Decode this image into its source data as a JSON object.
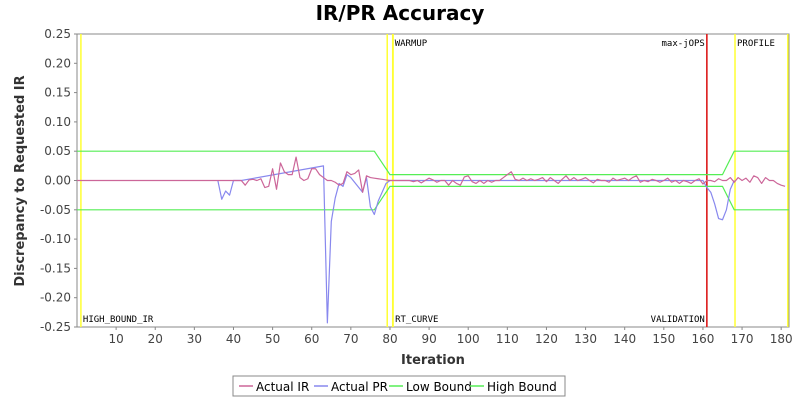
{
  "chart_data": {
    "type": "line",
    "title": "IR/PR Accuracy",
    "xlabel": "Iteration",
    "ylabel": "Discrepancy to Requested IR",
    "xlim": [
      0,
      182
    ],
    "ylim": [
      -0.25,
      0.25
    ],
    "xticks": [
      10,
      20,
      30,
      40,
      50,
      60,
      70,
      80,
      90,
      100,
      110,
      120,
      130,
      140,
      150,
      160,
      170,
      180
    ],
    "yticks": [
      -0.25,
      -0.2,
      -0.15,
      -0.1,
      -0.05,
      0.0,
      0.05,
      0.1,
      0.15,
      0.2,
      0.25
    ],
    "ytick_labels": [
      "-0.25",
      "-0.20",
      "-0.15",
      "-0.10",
      "-0.05",
      "0.00",
      "0.05",
      "0.10",
      "0.15",
      "0.20",
      "0.25"
    ],
    "grid": false,
    "legend_position": "bottom",
    "colors": {
      "actual_ir": "#cc6699",
      "actual_pr": "#8888ee",
      "low_bound": "#55ee55",
      "high_bound": "#55ee55",
      "yellow_marker": "#ffff33",
      "red_marker": "#dd2222",
      "plot_border": "#888888"
    },
    "vertical_markers": [
      {
        "x": 1,
        "color": "#ffff33",
        "label": "HIGH_BOUND_IR",
        "label_pos": "bottom"
      },
      {
        "x": 79.3,
        "color": "#ffff33",
        "label": "",
        "label_pos": "top"
      },
      {
        "x": 80.7,
        "color": "#ffff33",
        "label": "WARMUP",
        "label_pos": "top"
      },
      {
        "x": 80.8,
        "color": "#ffff33",
        "label": "RT_CURVE",
        "label_pos": "bottom"
      },
      {
        "x": 161,
        "color": "#dd2222",
        "label": "max-jOPS",
        "label_pos": "top-left"
      },
      {
        "x": 161,
        "color": "#dd2222",
        "label": "VALIDATION",
        "label_pos": "bottom-left"
      },
      {
        "x": 168.2,
        "color": "#ffff33",
        "label": "PROFILE",
        "label_pos": "top"
      },
      {
        "x": 181.7,
        "color": "#ffff33",
        "label": "",
        "label_pos": "top"
      }
    ],
    "series": [
      {
        "name": "Actual IR",
        "points": [
          [
            0,
            0
          ],
          [
            36,
            0
          ],
          [
            37,
            0
          ],
          [
            38,
            0
          ],
          [
            39,
            0
          ],
          [
            40,
            0
          ],
          [
            41,
            0
          ],
          [
            42,
            0
          ],
          [
            43,
            -0.008
          ],
          [
            44,
            0.001
          ],
          [
            45,
            0.002
          ],
          [
            46,
            0
          ],
          [
            47,
            0.003
          ],
          [
            48,
            -0.012
          ],
          [
            49,
            -0.01
          ],
          [
            50,
            0.02
          ],
          [
            51,
            -0.015
          ],
          [
            52,
            0.03
          ],
          [
            53,
            0.015
          ],
          [
            54,
            0.01
          ],
          [
            55,
            0.01
          ],
          [
            56,
            0.04
          ],
          [
            57,
            0.005
          ],
          [
            58,
            0
          ],
          [
            59,
            0.003
          ],
          [
            60,
            0.02
          ],
          [
            61,
            0.02
          ],
          [
            62,
            0.01
          ],
          [
            63,
            0.005
          ],
          [
            64,
            0
          ],
          [
            65,
            0
          ],
          [
            66,
            -0.003
          ],
          [
            67,
            -0.008
          ],
          [
            68,
            -0.005
          ],
          [
            69,
            0.015
          ],
          [
            70,
            0.01
          ],
          [
            71,
            0.012
          ],
          [
            72,
            0.018
          ],
          [
            73,
            -0.02
          ],
          [
            74,
            0.008
          ],
          [
            75,
            0.005
          ],
          [
            76,
            0.004
          ],
          [
            77,
            0.003
          ],
          [
            78,
            0.002
          ],
          [
            79,
            0.001
          ],
          [
            80,
            0
          ],
          [
            82,
            0
          ],
          [
            84,
            0
          ],
          [
            85,
            0
          ],
          [
            86,
            -0.002
          ],
          [
            87,
            0
          ],
          [
            88,
            -0.004
          ],
          [
            89,
            0
          ],
          [
            90,
            0.004
          ],
          [
            91,
            0.001
          ],
          [
            92,
            -0.003
          ],
          [
            93,
            0
          ],
          [
            94,
            0
          ],
          [
            95,
            -0.008
          ],
          [
            96,
            0
          ],
          [
            97,
            -0.005
          ],
          [
            98,
            -0.008
          ],
          [
            99,
            0.006
          ],
          [
            100,
            0.008
          ],
          [
            101,
            -0.002
          ],
          [
            102,
            -0.005
          ],
          [
            103,
            0
          ],
          [
            104,
            -0.005
          ],
          [
            105,
            0
          ],
          [
            106,
            -0.003
          ],
          [
            107,
            0
          ],
          [
            108,
            0
          ],
          [
            109,
            0.005
          ],
          [
            110,
            0.01
          ],
          [
            111,
            0.015
          ],
          [
            112,
            0.002
          ],
          [
            113,
            0
          ],
          [
            114,
            0.004
          ],
          [
            115,
            0
          ],
          [
            116,
            0.003
          ],
          [
            117,
            0
          ],
          [
            118,
            0.002
          ],
          [
            119,
            0.005
          ],
          [
            120,
            -0.002
          ],
          [
            121,
            0.005
          ],
          [
            122,
            0
          ],
          [
            123,
            -0.005
          ],
          [
            124,
            0.002
          ],
          [
            125,
            0.008
          ],
          [
            126,
            0
          ],
          [
            127,
            0.005
          ],
          [
            128,
            0
          ],
          [
            129,
            0.002
          ],
          [
            130,
            0.005
          ],
          [
            131,
            0
          ],
          [
            132,
            -0.004
          ],
          [
            133,
            0.002
          ],
          [
            134,
            0
          ],
          [
            135,
            0
          ],
          [
            136,
            -0.003
          ],
          [
            137,
            0.004
          ],
          [
            138,
            0
          ],
          [
            139,
            0.002
          ],
          [
            140,
            0.004
          ],
          [
            141,
            0
          ],
          [
            142,
            0.005
          ],
          [
            143,
            0.008
          ],
          [
            144,
            -0.003
          ],
          [
            145,
            0
          ],
          [
            146,
            -0.002
          ],
          [
            147,
            0.002
          ],
          [
            148,
            0
          ],
          [
            149,
            -0.003
          ],
          [
            150,
            0
          ],
          [
            151,
            0.004
          ],
          [
            152,
            -0.003
          ],
          [
            153,
            0
          ],
          [
            154,
            -0.005
          ],
          [
            155,
            0
          ],
          [
            156,
            -0.002
          ],
          [
            157,
            -0.005
          ],
          [
            158,
            0
          ],
          [
            159,
            0.003
          ],
          [
            160,
            -0.006
          ],
          [
            161,
            0
          ],
          [
            162,
            0
          ],
          [
            163,
            -0.002
          ],
          [
            164,
            0.003
          ],
          [
            165,
            0
          ],
          [
            166,
            0
          ],
          [
            167,
            0.005
          ],
          [
            168,
            -0.003
          ],
          [
            169,
            0.005
          ],
          [
            170,
            0
          ],
          [
            171,
            0.004
          ],
          [
            172,
            -0.003
          ],
          [
            173,
            0.008
          ],
          [
            174,
            0.005
          ],
          [
            175,
            -0.005
          ],
          [
            176,
            0.005
          ],
          [
            177,
            0
          ],
          [
            178,
            0
          ],
          [
            179,
            -0.005
          ],
          [
            180,
            -0.008
          ],
          [
            181,
            -0.01
          ]
        ]
      },
      {
        "name": "Actual PR",
        "points": [
          [
            36,
            0
          ],
          [
            37,
            -0.032
          ],
          [
            38,
            -0.018
          ],
          [
            39,
            -0.025
          ],
          [
            40,
            0
          ],
          [
            41,
            0
          ],
          [
            42,
            0
          ],
          [
            63,
            0.025
          ],
          [
            64,
            -0.243
          ],
          [
            65,
            -0.07
          ],
          [
            66,
            -0.03
          ],
          [
            67,
            -0.005
          ],
          [
            68,
            -0.01
          ],
          [
            69,
            0.01
          ],
          [
            70,
            0.005
          ],
          [
            73,
            -0.02
          ],
          [
            74,
            0.005
          ],
          [
            75,
            -0.045
          ],
          [
            76,
            -0.058
          ],
          [
            77,
            -0.035
          ],
          [
            78,
            -0.02
          ],
          [
            79,
            -0.005
          ],
          [
            80,
            0
          ],
          [
            160,
            0
          ],
          [
            161,
            -0.012
          ],
          [
            162,
            -0.02
          ],
          [
            163,
            -0.04
          ],
          [
            164,
            -0.065
          ],
          [
            165,
            -0.067
          ],
          [
            166,
            -0.05
          ],
          [
            167,
            -0.015
          ],
          [
            168,
            0
          ]
        ]
      },
      {
        "name": "Low Bound",
        "points": [
          [
            0,
            -0.05
          ],
          [
            76,
            -0.05
          ],
          [
            80,
            -0.01
          ],
          [
            165,
            -0.01
          ],
          [
            168,
            -0.05
          ],
          [
            182,
            -0.05
          ]
        ]
      },
      {
        "name": "High Bound",
        "points": [
          [
            0,
            0.05
          ],
          [
            76,
            0.05
          ],
          [
            80,
            0.01
          ],
          [
            165,
            0.01
          ],
          [
            168,
            0.05
          ],
          [
            182,
            0.05
          ]
        ]
      }
    ]
  }
}
